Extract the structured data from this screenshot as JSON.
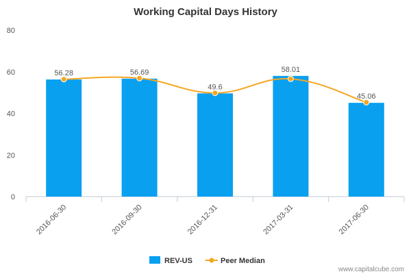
{
  "chart_data": {
    "type": "bar",
    "title": "Working Capital Days History",
    "categories": [
      "2016-06-30",
      "2016-09-30",
      "2016-12-31",
      "2017-03-31",
      "2017-06-30"
    ],
    "series": [
      {
        "name": "REV-US",
        "type": "bar",
        "color": "#0aa0f0",
        "values": [
          56.28,
          56.69,
          49.6,
          58.01,
          45.06
        ]
      },
      {
        "name": "Peer Median",
        "type": "line",
        "color": "#f5a623",
        "values": [
          56.4,
          56.9,
          49.8,
          56.6,
          45.3
        ]
      }
    ],
    "data_labels": [
      "56.28",
      "56.69",
      "49.6",
      "58.01",
      "45.06"
    ],
    "y_ticks": [
      "0",
      "20",
      "40",
      "60",
      "80"
    ],
    "ylim": [
      0,
      80
    ],
    "legend": "bottom-center",
    "grid": false
  },
  "credit": "www.capitalcube.com"
}
